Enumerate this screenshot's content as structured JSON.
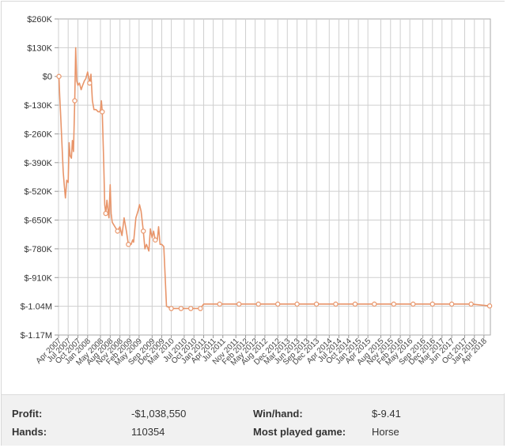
{
  "chart_data": {
    "type": "line",
    "y_ticks": [
      "$260K",
      "$130K",
      "$0",
      "$-130K",
      "$-260K",
      "$-390K",
      "$-520K",
      "$-650K",
      "$-780K",
      "$-910K",
      "$-1.04M",
      "$-1.17M"
    ],
    "ylim": [
      -1170000,
      260000
    ],
    "x_tick_labels": [
      "Apr 2007",
      "Jul 2007",
      "Oct 2007",
      "Jan 2008",
      "May 2008",
      "Aug 2008",
      "Nov 2008",
      "Feb 2009",
      "May 2009",
      "Sep 2009",
      "Dec 2009",
      "Mar 2010",
      "Jul 2010",
      "Oct 2010",
      "Jan 2011",
      "Apr 2011",
      "Jul 2011",
      "Nov 2011",
      "Feb 2012",
      "May 2012",
      "Aug 2012",
      "Dec 2012",
      "Mar 2013",
      "Jun 2013",
      "Sep 2013",
      "Dec 2013",
      "Apr 2014",
      "Jul 2014",
      "Oct 2014",
      "Jan 2015",
      "Apr 2015",
      "Aug 2015",
      "Nov 2015",
      "Feb 2016",
      "May 2016",
      "Sep 2016",
      "Dec 2016",
      "Mar 2017",
      "Jun 2017",
      "Oct 2017",
      "Jan 2018",
      "Apr 2018"
    ],
    "x_range": [
      "2007-04",
      "2018-06"
    ],
    "grid": true,
    "line_color": "#e8956a",
    "series": [
      {
        "points": [
          [
            "2007-04-05",
            0
          ],
          [
            "2007-04-12",
            -90000
          ],
          [
            "2007-04-20",
            -160000
          ],
          [
            "2007-05-01",
            -280000
          ],
          [
            "2007-05-15",
            -430000
          ],
          [
            "2007-05-25",
            -490000
          ],
          [
            "2007-06-05",
            -550000
          ],
          [
            "2007-06-18",
            -470000
          ],
          [
            "2007-07-01",
            -480000
          ],
          [
            "2007-07-10",
            -300000
          ],
          [
            "2007-07-20",
            -360000
          ],
          [
            "2007-08-01",
            -370000
          ],
          [
            "2007-08-10",
            -290000
          ],
          [
            "2007-08-20",
            -340000
          ],
          [
            "2007-09-01",
            -110000
          ],
          [
            "2007-09-10",
            130000
          ],
          [
            "2007-09-20",
            -20000
          ],
          [
            "2007-10-01",
            -40000
          ],
          [
            "2007-10-15",
            -30000
          ],
          [
            "2007-11-01",
            -60000
          ],
          [
            "2007-11-15",
            -40000
          ],
          [
            "2007-12-01",
            -20000
          ],
          [
            "2007-12-15",
            -10000
          ],
          [
            "2008-01-01",
            20000
          ],
          [
            "2008-01-20",
            -30000
          ],
          [
            "2008-02-01",
            10000
          ],
          [
            "2008-02-15",
            -110000
          ],
          [
            "2008-03-01",
            -150000
          ],
          [
            "2008-03-20",
            -150000
          ],
          [
            "2008-04-10",
            -160000
          ],
          [
            "2008-04-25",
            -160000
          ],
          [
            "2008-05-01",
            -150000
          ],
          [
            "2008-05-10",
            -110000
          ],
          [
            "2008-05-18",
            -160000
          ],
          [
            "2008-06-01",
            -400000
          ],
          [
            "2008-06-10",
            -580000
          ],
          [
            "2008-06-20",
            -620000
          ],
          [
            "2008-07-01",
            -560000
          ],
          [
            "2008-07-10",
            -600000
          ],
          [
            "2008-07-20",
            -640000
          ],
          [
            "2008-08-01",
            -490000
          ],
          [
            "2008-08-10",
            -620000
          ],
          [
            "2008-08-20",
            -660000
          ],
          [
            "2008-09-15",
            -680000
          ],
          [
            "2008-10-10",
            -700000
          ],
          [
            "2008-11-01",
            -680000
          ],
          [
            "2008-11-20",
            -720000
          ],
          [
            "2008-12-10",
            -640000
          ],
          [
            "2009-01-01",
            -700000
          ],
          [
            "2009-01-20",
            -760000
          ],
          [
            "2009-02-15",
            -760000
          ],
          [
            "2009-03-01",
            -740000
          ],
          [
            "2009-03-10",
            -750000
          ],
          [
            "2009-04-01",
            -640000
          ],
          [
            "2009-04-20",
            -610000
          ],
          [
            "2009-05-05",
            -580000
          ],
          [
            "2009-05-20",
            -610000
          ],
          [
            "2009-06-10",
            -700000
          ],
          [
            "2009-06-25",
            -780000
          ],
          [
            "2009-07-10",
            -760000
          ],
          [
            "2009-08-01",
            -790000
          ],
          [
            "2009-08-15",
            -690000
          ],
          [
            "2009-09-01",
            -730000
          ],
          [
            "2009-09-15",
            -700000
          ],
          [
            "2009-10-01",
            -740000
          ],
          [
            "2009-10-20",
            -740000
          ],
          [
            "2009-11-01",
            -680000
          ],
          [
            "2009-11-15",
            -760000
          ],
          [
            "2009-12-01",
            -760000
          ],
          [
            "2009-12-20",
            -770000
          ],
          [
            "2010-01-15",
            -1040000
          ],
          [
            "2010-03-01",
            -1050000
          ],
          [
            "2010-06-01",
            -1050000
          ],
          [
            "2010-09-01",
            -1050000
          ],
          [
            "2010-12-01",
            -1050000
          ],
          [
            "2011-01-01",
            -1030000
          ],
          [
            "2011-06-01",
            -1030000
          ],
          [
            "2011-12-01",
            -1030000
          ],
          [
            "2012-06-01",
            -1030000
          ],
          [
            "2012-12-01",
            -1030000
          ],
          [
            "2013-06-01",
            -1030000
          ],
          [
            "2013-12-01",
            -1030000
          ],
          [
            "2014-06-01",
            -1030000
          ],
          [
            "2014-12-01",
            -1030000
          ],
          [
            "2015-06-01",
            -1030000
          ],
          [
            "2015-12-01",
            -1030000
          ],
          [
            "2016-06-01",
            -1030000
          ],
          [
            "2016-12-01",
            -1030000
          ],
          [
            "2017-06-01",
            -1030000
          ],
          [
            "2017-12-01",
            -1030000
          ],
          [
            "2018-05-25",
            -1038550
          ]
        ],
        "markers": [
          "2007-04-05",
          "2007-09-01",
          "2008-01-20",
          "2008-05-18",
          "2008-06-20",
          "2008-10-10",
          "2009-01-20",
          "2009-06-10",
          "2009-10-01",
          "2010-03-01",
          "2010-06-01",
          "2010-09-01",
          "2010-12-01",
          "2011-06-01",
          "2011-12-01",
          "2012-06-01",
          "2012-12-01",
          "2013-06-01",
          "2013-12-01",
          "2014-06-01",
          "2014-12-01",
          "2015-06-01",
          "2015-12-01",
          "2016-06-01",
          "2016-12-01",
          "2017-06-01",
          "2017-12-01",
          "2018-05-25"
        ]
      }
    ]
  },
  "stats": {
    "profit_label": "Profit:",
    "profit_value": "-$1,038,550",
    "hands_label": "Hands:",
    "hands_value": "110354",
    "winhand_label": "Win/hand:",
    "winhand_value": "$-9.41",
    "game_label": "Most played game:",
    "game_value": "Horse"
  }
}
